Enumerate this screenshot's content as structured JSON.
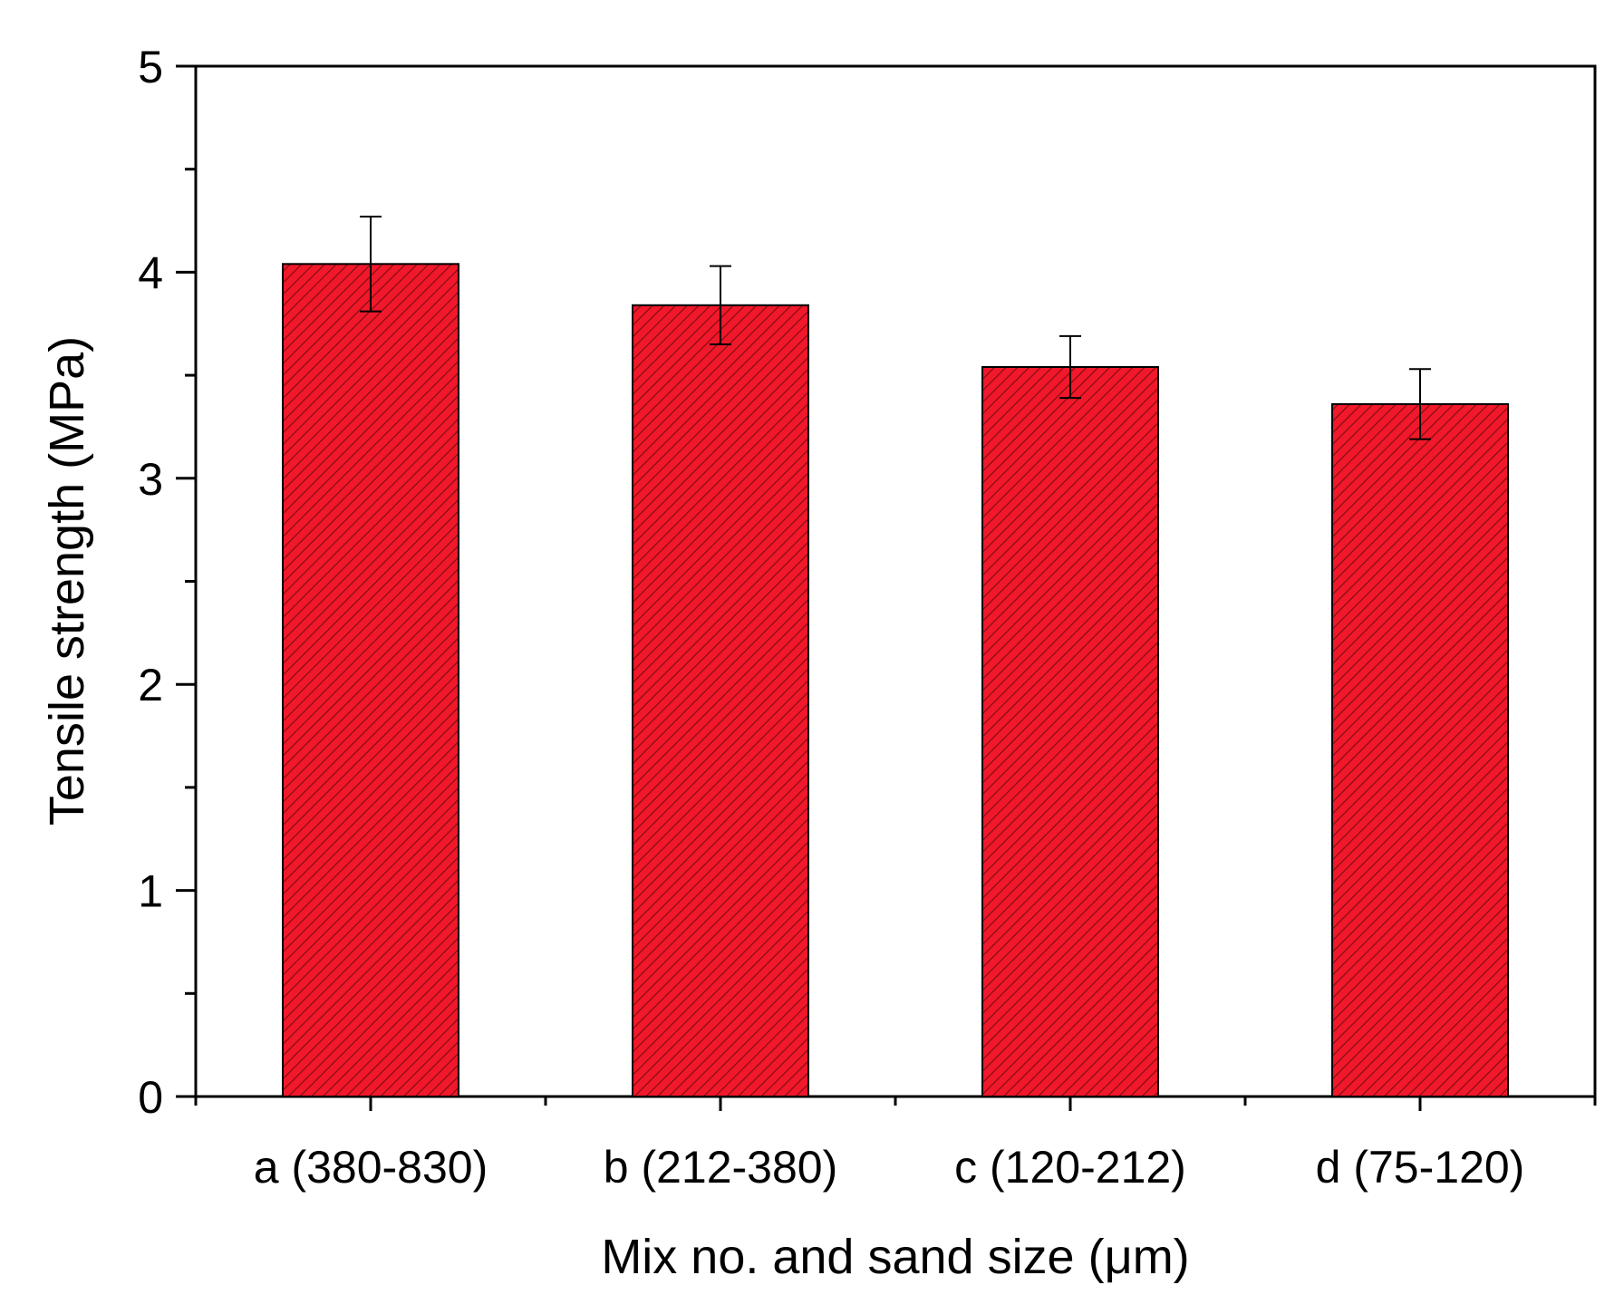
{
  "chart_data": {
    "type": "bar",
    "title": "",
    "xlabel": "Mix no. and sand size (μm)",
    "ylabel": "Tensile strength (MPa)",
    "ylim": [
      0,
      5
    ],
    "y_ticks": [
      "0",
      "1",
      "2",
      "3",
      "4",
      "5"
    ],
    "y_minor_step": 0.5,
    "categories": [
      "a (380-830)",
      "b (212-380)",
      "c (120-212)",
      "d (75-120)"
    ],
    "values": [
      4.04,
      3.84,
      3.54,
      3.36
    ],
    "error": [
      0.23,
      0.19,
      0.15,
      0.17
    ],
    "bar_color": "#f0182a",
    "bar_pattern": "diagonal-hatch",
    "grid": false,
    "legend": "none"
  }
}
